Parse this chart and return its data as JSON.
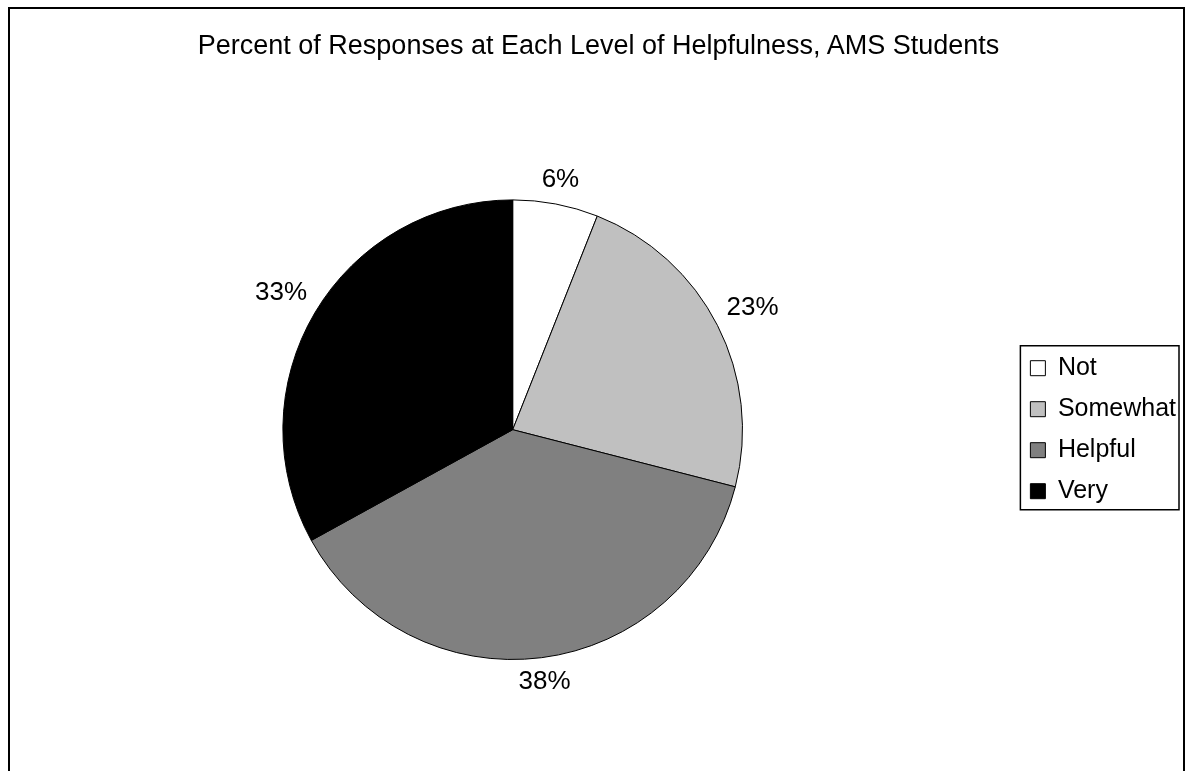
{
  "chart_data": {
    "type": "pie",
    "title": "Percent of Responses at Each Level of Helpfulness, AMS Students",
    "categories": [
      "Not",
      "Somewhat",
      "Helpful",
      "Very"
    ],
    "values": [
      6,
      23,
      38,
      33
    ],
    "colors": [
      "#ffffff",
      "#c0c0c0",
      "#808080",
      "#000000"
    ],
    "value_labels": [
      "6%",
      "23%",
      "38%",
      "33%"
    ],
    "legend": "right"
  }
}
